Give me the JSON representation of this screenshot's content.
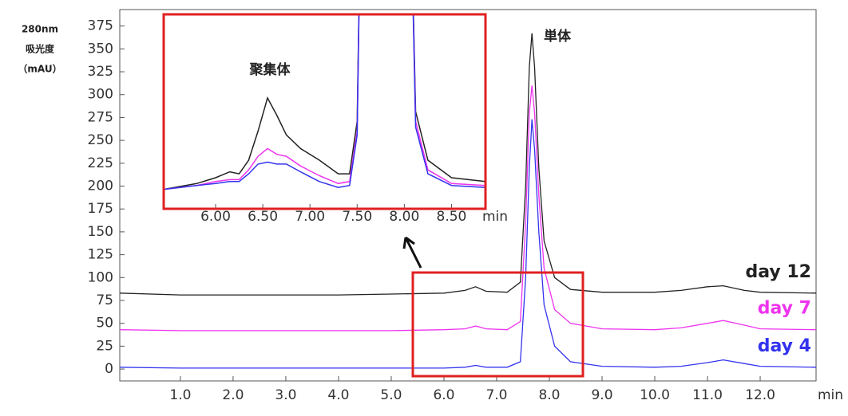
{
  "chart_data": [
    {
      "type": "line",
      "y_label": [
        "280nm",
        "吸光度",
        "（mAU）"
      ],
      "x_unit": "min",
      "annotation": "単体",
      "x": [
        -0.15,
        1,
        2,
        3,
        4,
        5,
        6,
        6.4,
        6.6,
        6.8,
        7.2,
        7.45,
        7.55,
        7.62,
        7.67,
        7.72,
        7.8,
        7.9,
        8.1,
        8.4,
        9,
        10,
        10.5,
        11,
        11.3,
        11.7,
        12,
        13.06
      ],
      "series": [
        {
          "name": "day 12",
          "color": "#222222",
          "values": [
            83,
            81,
            81,
            81,
            81,
            82,
            83,
            86,
            90,
            85,
            84,
            95,
            200,
            330,
            367,
            330,
            220,
            140,
            100,
            87,
            84,
            84,
            86,
            90,
            91,
            86,
            84,
            83
          ]
        },
        {
          "name": "day 7",
          "color": "#ee33ee",
          "values": [
            43,
            42,
            42,
            42,
            42,
            42,
            43,
            44,
            47,
            44,
            43,
            52,
            160,
            280,
            310,
            280,
            190,
            110,
            65,
            50,
            44,
            43,
            45,
            50,
            53,
            48,
            44,
            43
          ]
        },
        {
          "name": "day 4",
          "color": "#3333ee",
          "values": [
            2,
            1,
            1,
            1,
            1,
            1,
            1,
            2,
            4,
            2,
            2,
            8,
            100,
            220,
            273,
            240,
            150,
            70,
            25,
            8,
            3,
            2,
            3,
            7,
            10,
            6,
            3,
            2
          ]
        }
      ],
      "xlim": [
        -0.15,
        13.06
      ],
      "ylim": [
        -13,
        393
      ],
      "xticks": [
        {
          "value": 1,
          "label": "1.0"
        },
        {
          "value": 2,
          "label": "2.0"
        },
        {
          "value": 3,
          "label": "3.0"
        },
        {
          "value": 4,
          "label": "4.0"
        },
        {
          "value": 5,
          "label": "5.0"
        },
        {
          "value": 6,
          "label": "6.0"
        },
        {
          "value": 7,
          "label": "7.0"
        },
        {
          "value": 8,
          "label": "8.0"
        },
        {
          "value": 9,
          "label": "9.0"
        },
        {
          "value": 10,
          "label": "10.0"
        },
        {
          "value": 11,
          "label": "11.0"
        },
        {
          "value": 12,
          "label": "12.0"
        }
      ],
      "yticks": [
        0,
        25,
        50,
        75,
        100,
        125,
        150,
        175,
        200,
        225,
        250,
        275,
        300,
        325,
        350,
        375
      ]
    },
    {
      "type": "line",
      "x_unit": "min",
      "annotation": "聚集体",
      "x": [
        5.45,
        5.8,
        6.0,
        6.15,
        6.25,
        6.35,
        6.45,
        6.55,
        6.65,
        6.75,
        6.9,
        7.1,
        7.3,
        7.42,
        7.5,
        7.55,
        8.05,
        8.12,
        8.25,
        8.5,
        8.86
      ],
      "series": [
        {
          "color": "#222222",
          "values": [
            10,
            13,
            16,
            19,
            18,
            25,
            40,
            57,
            48,
            38,
            31,
            25,
            18,
            18,
            45,
            200,
            200,
            50,
            25,
            16,
            14
          ]
        },
        {
          "color": "#ee33ee",
          "values": [
            10,
            12,
            14,
            15,
            15,
            20,
            27,
            31,
            28,
            27,
            22,
            17,
            13,
            14,
            40,
            200,
            200,
            45,
            20,
            13,
            12
          ]
        },
        {
          "color": "#3333ee",
          "values": [
            10,
            12,
            13,
            14,
            14,
            18,
            23,
            24,
            23,
            23,
            19,
            14,
            11,
            12,
            38,
            200,
            200,
            42,
            18,
            12,
            11
          ]
        }
      ],
      "xlim": [
        5.45,
        8.86
      ],
      "ylim": [
        0,
        100
      ],
      "xticks": [
        {
          "value": 6,
          "label": "6.00"
        },
        {
          "value": 6.5,
          "label": "6.50"
        },
        {
          "value": 7,
          "label": "7.00"
        },
        {
          "value": 7.5,
          "label": "7.50"
        },
        {
          "value": 8,
          "label": "8.00"
        },
        {
          "value": 8.5,
          "label": "8.50"
        }
      ]
    }
  ]
}
